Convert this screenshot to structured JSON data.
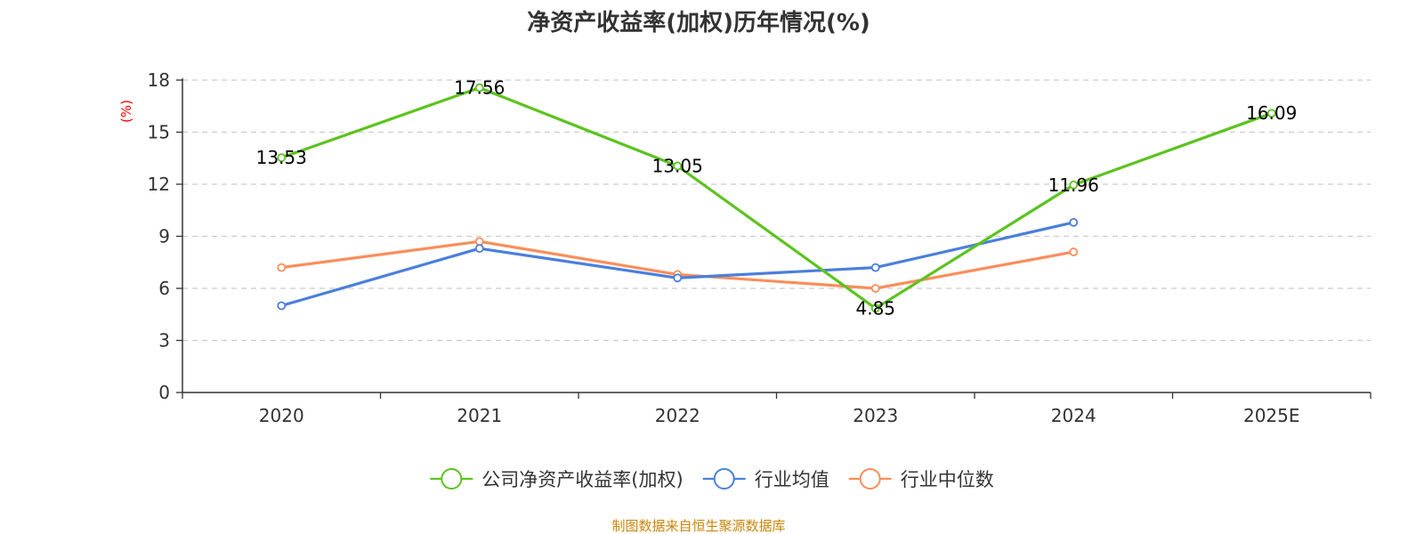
{
  "chart_data": {
    "type": "line",
    "title": "净资产收益率(加权)历年情况(%)",
    "ylabel": "(%)",
    "xlabel": "",
    "categories": [
      "2020",
      "2021",
      "2022",
      "2023",
      "2024",
      "2025E"
    ],
    "ylim": [
      0,
      18
    ],
    "yticks": [
      0,
      3,
      6,
      9,
      12,
      15,
      18
    ],
    "grid": true,
    "legend_position": "bottom-center",
    "series": [
      {
        "name": "公司净资产收益率(加权)",
        "color": "#5cc31e",
        "values": [
          13.53,
          17.56,
          13.05,
          4.85,
          11.96,
          16.09
        ],
        "show_labels": true
      },
      {
        "name": "行业均值",
        "color": "#4a7fdc",
        "values": [
          5.0,
          8.3,
          6.6,
          7.2,
          9.8,
          null
        ],
        "show_labels": false
      },
      {
        "name": "行业中位数",
        "color": "#fb8d5a",
        "values": [
          7.2,
          8.7,
          6.8,
          6.0,
          8.1,
          null
        ],
        "show_labels": false
      }
    ]
  },
  "footer": {
    "source": "制图数据来自恒生聚源数据库",
    "source_color": "#c8860a"
  }
}
